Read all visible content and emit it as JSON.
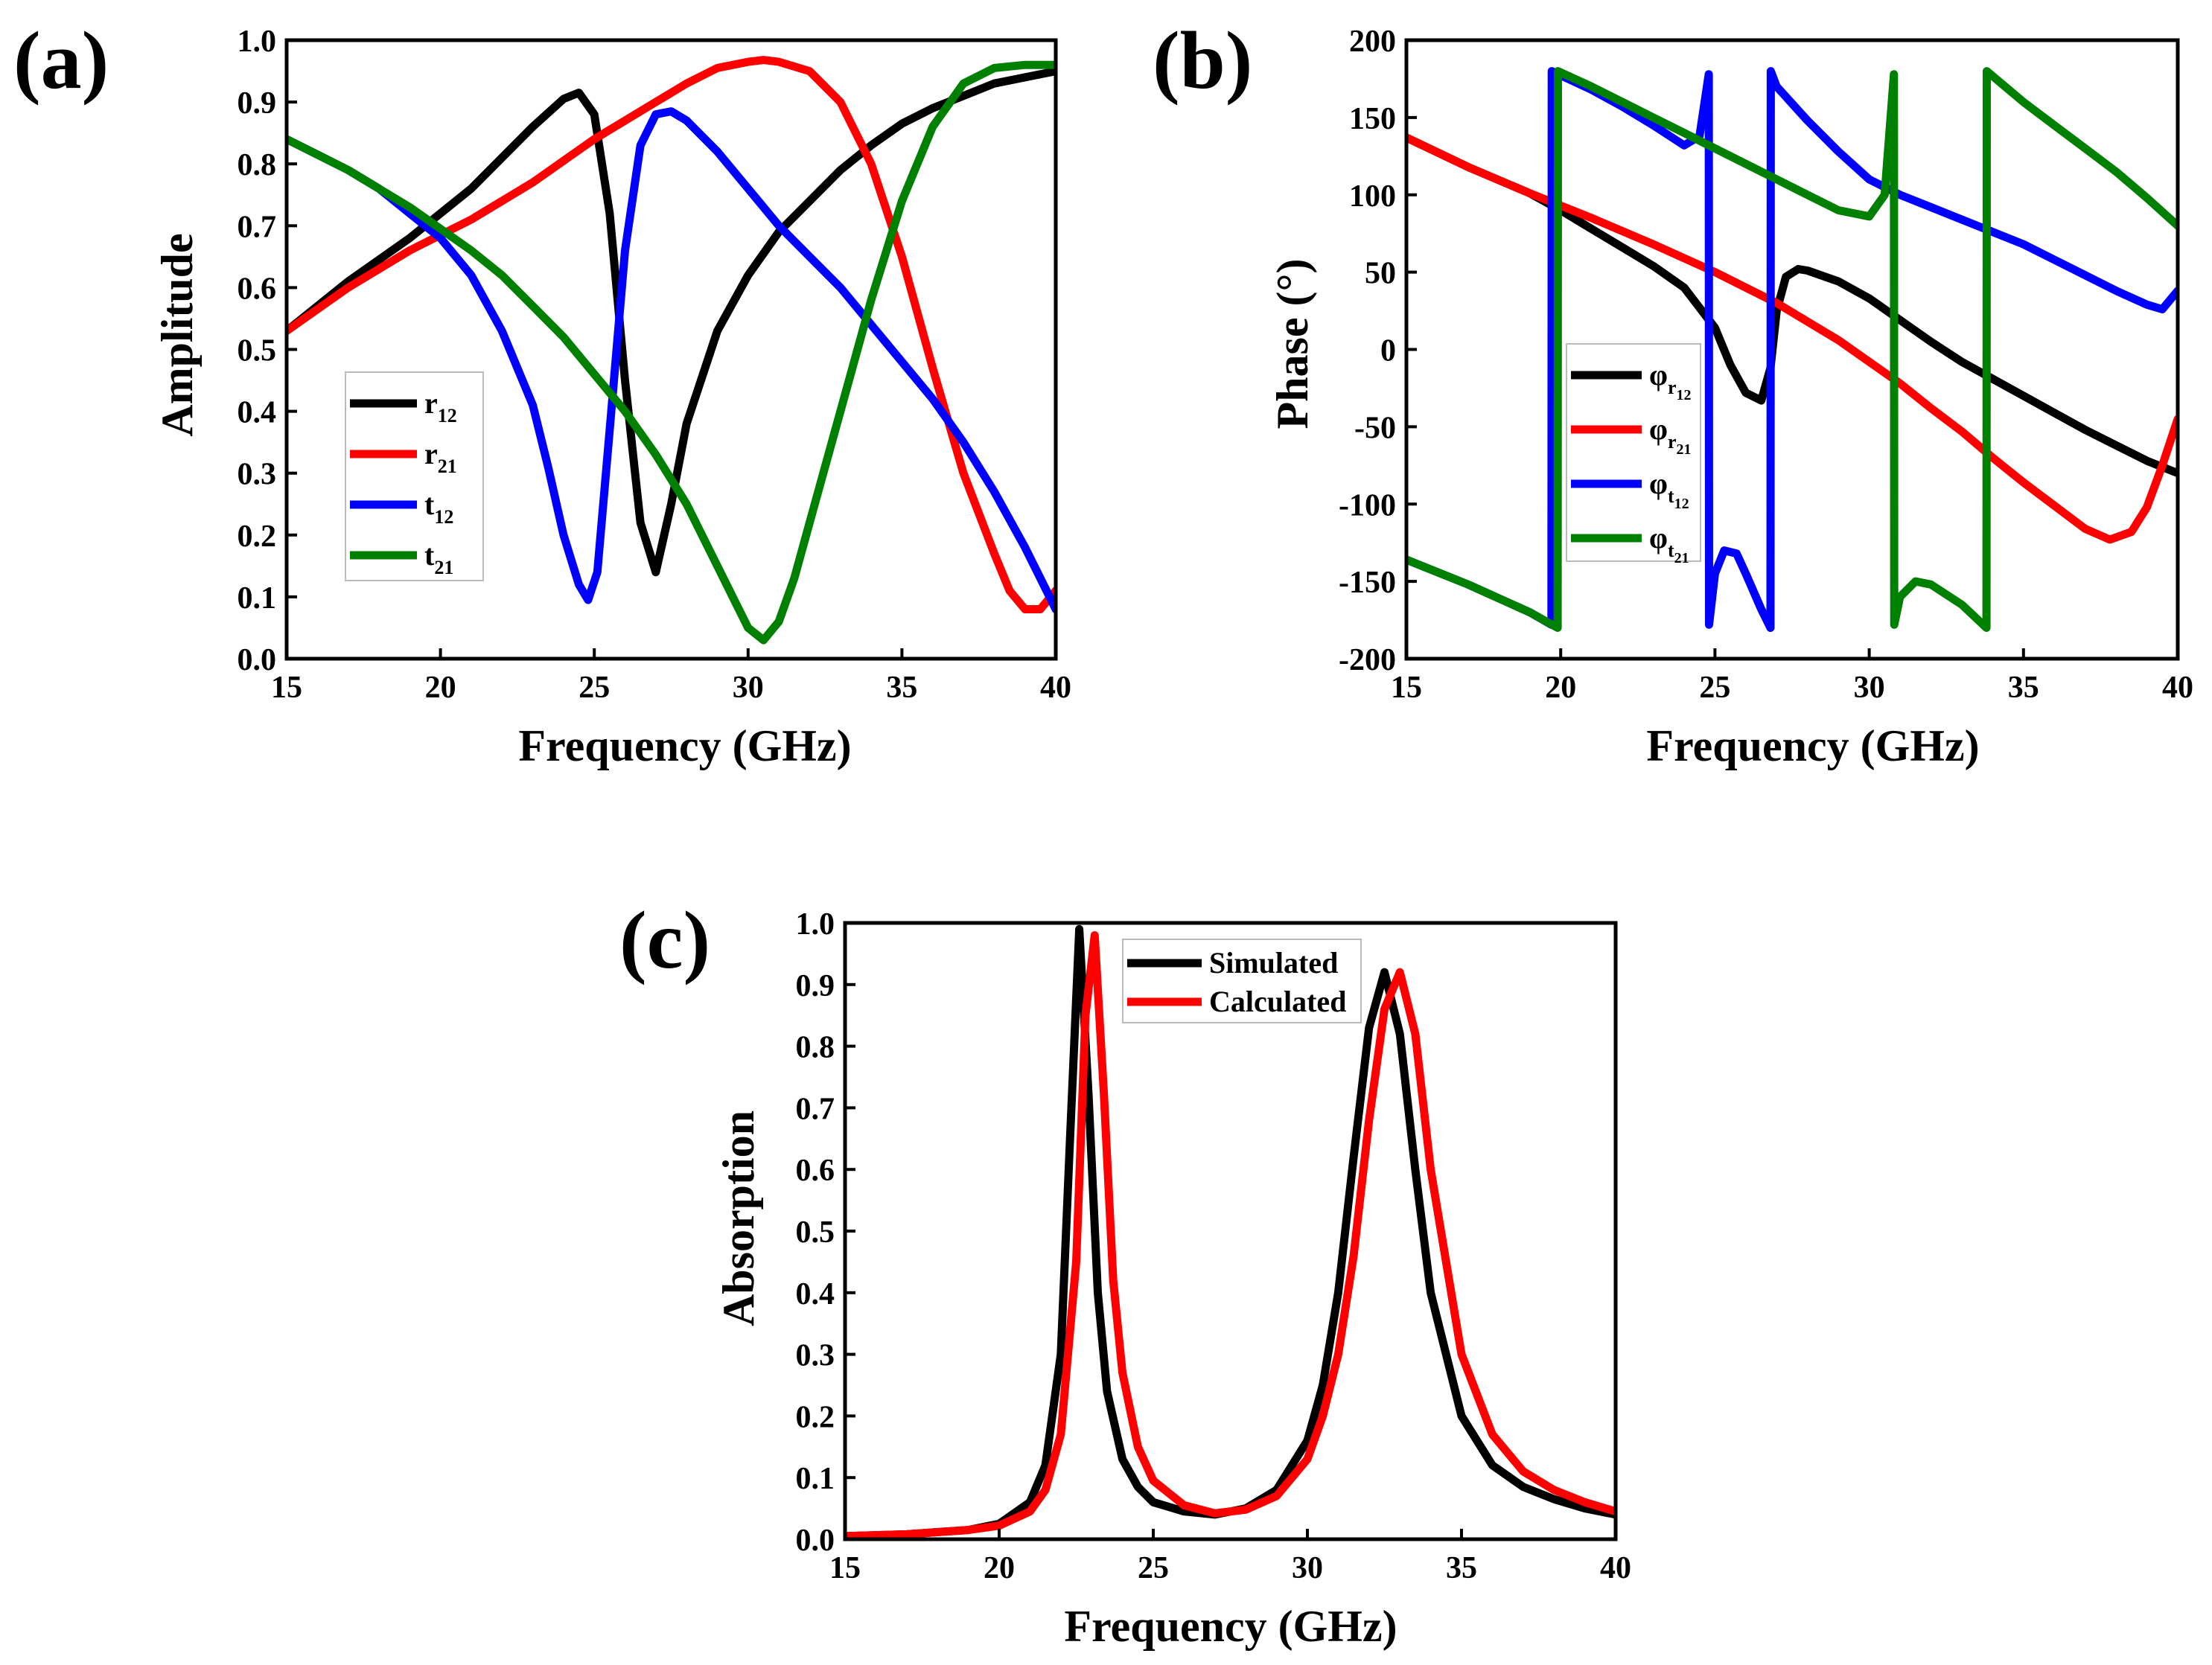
{
  "panels": {
    "a": {
      "label": "(a)",
      "xlabel": "Frequency (GHz)",
      "ylabel": "Amplitude",
      "xticks": [
        "15",
        "20",
        "25",
        "30",
        "35",
        "40"
      ],
      "yticks": [
        "0.0",
        "0.1",
        "0.2",
        "0.3",
        "0.4",
        "0.5",
        "0.6",
        "0.7",
        "0.8",
        "0.9",
        "1.0"
      ],
      "legend": [
        {
          "base": "r",
          "sub": "12"
        },
        {
          "base": "r",
          "sub": "21"
        },
        {
          "base": "t",
          "sub": "12"
        },
        {
          "base": "t",
          "sub": "21"
        }
      ]
    },
    "b": {
      "label": "(b)",
      "xlabel": "Frequency (GHz)",
      "ylabel": "Phase (°)",
      "xticks": [
        "15",
        "20",
        "25",
        "30",
        "35",
        "40"
      ],
      "yticks": [
        "-200",
        "-150",
        "-100",
        "-50",
        "0",
        "50",
        "100",
        "150",
        "200"
      ],
      "legend": [
        {
          "base": "φ",
          "sub": "r",
          "sub2": "12"
        },
        {
          "base": "φ",
          "sub": "r",
          "sub2": "21"
        },
        {
          "base": "φ",
          "sub": "t",
          "sub2": "12"
        },
        {
          "base": "φ",
          "sub": "t",
          "sub2": "21"
        }
      ]
    },
    "c": {
      "label": "(c)",
      "xlabel": "Frequency (GHz)",
      "ylabel": "Absorption",
      "xticks": [
        "15",
        "20",
        "25",
        "30",
        "35",
        "40"
      ],
      "yticks": [
        "0.0",
        "0.1",
        "0.2",
        "0.3",
        "0.4",
        "0.5",
        "0.6",
        "0.7",
        "0.8",
        "0.9",
        "1.0"
      ],
      "legend": [
        {
          "base": "Simulated"
        },
        {
          "base": "Calculated"
        }
      ]
    }
  },
  "chart_data": [
    {
      "type": "line",
      "title": "(a)",
      "xlabel": "Frequency (GHz)",
      "ylabel": "Amplitude",
      "xlim": [
        15,
        40
      ],
      "ylim": [
        0,
        1
      ],
      "series": [
        {
          "name": "r12",
          "color": "#000000",
          "x": [
            15,
            17,
            19,
            20,
            21,
            22,
            23,
            24,
            24.5,
            25,
            25.5,
            26,
            26.5,
            27,
            27.5,
            28,
            29,
            30,
            31,
            32,
            33,
            34,
            35,
            36,
            37,
            38,
            39,
            40
          ],
          "y": [
            0.53,
            0.61,
            0.68,
            0.72,
            0.76,
            0.81,
            0.86,
            0.905,
            0.915,
            0.88,
            0.72,
            0.45,
            0.22,
            0.14,
            0.25,
            0.38,
            0.53,
            0.62,
            0.69,
            0.74,
            0.79,
            0.83,
            0.865,
            0.89,
            0.91,
            0.93,
            0.94,
            0.95
          ]
        },
        {
          "name": "r21",
          "color": "#ff0000",
          "x": [
            15,
            17,
            19,
            21,
            23,
            25,
            27,
            28,
            29,
            30,
            30.5,
            31,
            32,
            33,
            34,
            35,
            36,
            37,
            38,
            38.5,
            39,
            39.5,
            40
          ],
          "y": [
            0.53,
            0.6,
            0.66,
            0.71,
            0.77,
            0.84,
            0.9,
            0.93,
            0.955,
            0.965,
            0.968,
            0.965,
            0.95,
            0.9,
            0.8,
            0.65,
            0.47,
            0.3,
            0.17,
            0.11,
            0.08,
            0.08,
            0.11
          ]
        },
        {
          "name": "t12",
          "color": "#0000ff",
          "x": [
            15,
            16,
            17,
            18,
            19,
            20,
            21,
            22,
            23,
            23.5,
            24,
            24.5,
            24.8,
            25.1,
            25.5,
            26,
            26.5,
            27,
            27.5,
            28,
            29,
            30,
            31,
            32,
            33,
            34,
            35,
            36,
            37,
            38,
            39,
            40
          ],
          "y": [
            0.84,
            0.815,
            0.79,
            0.76,
            0.72,
            0.68,
            0.62,
            0.53,
            0.41,
            0.31,
            0.2,
            0.12,
            0.095,
            0.14,
            0.37,
            0.66,
            0.83,
            0.88,
            0.885,
            0.87,
            0.82,
            0.76,
            0.7,
            0.65,
            0.6,
            0.54,
            0.48,
            0.42,
            0.35,
            0.27,
            0.18,
            0.08
          ]
        },
        {
          "name": "t21",
          "color": "#008000",
          "x": [
            15,
            17,
            19,
            21,
            22,
            23,
            24,
            25,
            26,
            27,
            28,
            29,
            29.5,
            30,
            30.5,
            31,
            31.5,
            32,
            33,
            34,
            35,
            36,
            37,
            38,
            39,
            40
          ],
          "y": [
            0.84,
            0.79,
            0.73,
            0.66,
            0.62,
            0.57,
            0.52,
            0.46,
            0.4,
            0.33,
            0.25,
            0.15,
            0.1,
            0.05,
            0.03,
            0.06,
            0.13,
            0.22,
            0.4,
            0.58,
            0.74,
            0.86,
            0.93,
            0.955,
            0.96,
            0.96
          ]
        }
      ]
    },
    {
      "type": "line",
      "title": "(b)",
      "xlabel": "Frequency (GHz)",
      "ylabel": "Phase (°)",
      "xlim": [
        15,
        40
      ],
      "ylim": [
        -200,
        200
      ],
      "series": [
        {
          "name": "φr12",
          "color": "#000000",
          "x": [
            15,
            17,
            19,
            20,
            21,
            22,
            23,
            24,
            25,
            25.5,
            26,
            26.5,
            26.8,
            27,
            27.3,
            27.7,
            28,
            29,
            30,
            31,
            32,
            33,
            34,
            35,
            36,
            37,
            38,
            39,
            40
          ],
          "y": [
            137,
            118,
            101,
            90,
            78,
            66,
            54,
            40,
            14,
            -10,
            -28,
            -33,
            -12,
            25,
            47,
            52,
            51,
            44,
            33,
            19,
            5,
            -8,
            -19,
            -30,
            -41,
            -52,
            -62,
            -72,
            -80
          ]
        },
        {
          "name": "φr21",
          "color": "#ff0000",
          "x": [
            15,
            17,
            19,
            21,
            23,
            25,
            27,
            29,
            30,
            31,
            32,
            33,
            34,
            35,
            36,
            37,
            37.8,
            38.5,
            39,
            39.5,
            40
          ],
          "y": [
            137,
            118,
            101,
            85,
            68,
            50,
            30,
            6,
            -8,
            -22,
            -38,
            -53,
            -70,
            -86,
            -101,
            -116,
            -123,
            -118,
            -102,
            -75,
            -45
          ]
        },
        {
          "name": "φt12",
          "color": "#0000ff",
          "x": [
            15,
            17,
            19,
            19.7,
            19.71,
            21,
            22,
            23,
            24,
            24.5,
            24.8,
            24.81,
            25,
            25.3,
            25.7,
            26,
            26.5,
            26.8,
            26.81,
            27,
            28,
            29,
            30,
            31,
            32,
            33,
            34,
            35,
            36,
            37,
            38,
            39,
            39.5,
            40
          ],
          "y": [
            -136,
            -152,
            -170,
            -178,
            180,
            168,
            157,
            145,
            132,
            138,
            178,
            -178,
            -145,
            -130,
            -132,
            -145,
            -168,
            -180,
            180,
            170,
            148,
            128,
            110,
            100,
            92,
            84,
            76,
            68,
            58,
            48,
            38,
            29,
            26,
            38
          ]
        },
        {
          "name": "φt21",
          "color": "#008000",
          "x": [
            15,
            17,
            19,
            19.9,
            19.91,
            21,
            22,
            23,
            24,
            25,
            26,
            27,
            28,
            29,
            30,
            30.5,
            30.8,
            30.81,
            31,
            31.5,
            32,
            33,
            33.8,
            33.81,
            35,
            36,
            37,
            38,
            39,
            40
          ],
          "y": [
            -136,
            -152,
            -170,
            -180,
            180,
            170,
            160,
            150,
            140,
            130,
            120,
            110,
            100,
            90,
            86,
            100,
            178,
            -178,
            -160,
            -150,
            -152,
            -165,
            -180,
            180,
            160,
            145,
            130,
            115,
            98,
            80
          ]
        }
      ]
    },
    {
      "type": "line",
      "title": "(c)",
      "xlabel": "Frequency (GHz)",
      "ylabel": "Absorption",
      "xlim": [
        15,
        40
      ],
      "ylim": [
        0,
        1
      ],
      "series": [
        {
          "name": "Simulated",
          "color": "#000000",
          "x": [
            15,
            17,
            19,
            20,
            21,
            21.5,
            22,
            22.3,
            22.6,
            22.9,
            23.2,
            23.5,
            24,
            24.5,
            25,
            26,
            27,
            28,
            29,
            30,
            30.5,
            31,
            31.5,
            32,
            32.5,
            33,
            33.5,
            34,
            35,
            36,
            37,
            38,
            39,
            40
          ],
          "y": [
            0.005,
            0.008,
            0.015,
            0.025,
            0.06,
            0.12,
            0.3,
            0.65,
            0.99,
            0.72,
            0.4,
            0.24,
            0.13,
            0.085,
            0.06,
            0.045,
            0.04,
            0.05,
            0.08,
            0.16,
            0.25,
            0.4,
            0.62,
            0.83,
            0.92,
            0.82,
            0.6,
            0.4,
            0.2,
            0.12,
            0.085,
            0.065,
            0.05,
            0.04
          ]
        },
        {
          "name": "Calculated",
          "color": "#ff0000",
          "x": [
            15,
            17,
            19,
            20,
            21,
            21.5,
            22,
            22.5,
            22.8,
            23.1,
            23.4,
            23.7,
            24,
            24.5,
            25,
            26,
            27,
            28,
            29,
            30,
            30.5,
            31,
            31.5,
            32,
            32.5,
            33,
            33.5,
            34,
            35,
            36,
            37,
            38,
            39,
            40
          ],
          "y": [
            0.005,
            0.008,
            0.015,
            0.022,
            0.045,
            0.08,
            0.17,
            0.45,
            0.85,
            0.98,
            0.72,
            0.42,
            0.27,
            0.15,
            0.095,
            0.055,
            0.042,
            0.048,
            0.07,
            0.13,
            0.2,
            0.3,
            0.46,
            0.68,
            0.86,
            0.92,
            0.82,
            0.6,
            0.3,
            0.17,
            0.11,
            0.08,
            0.06,
            0.045
          ]
        }
      ]
    }
  ]
}
